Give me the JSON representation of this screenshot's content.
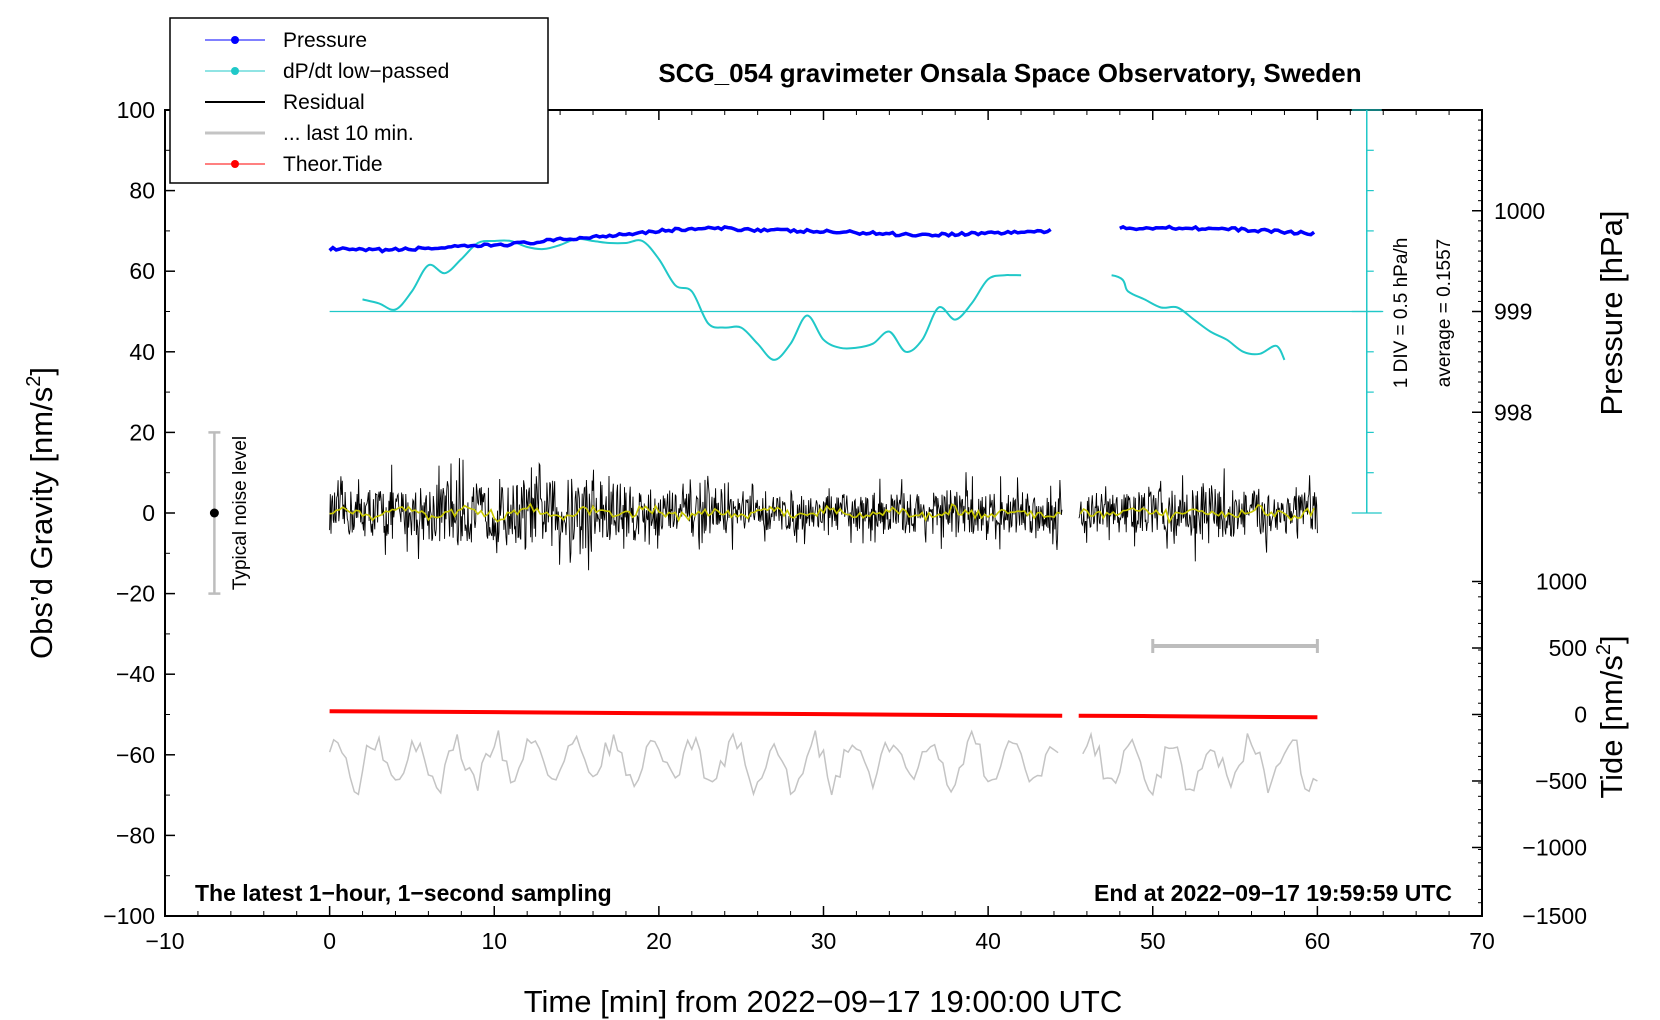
{
  "chart_data": {
    "type": "line",
    "title": "SCG_054 gravimeter Onsala Space Observatory, Sweden",
    "xlabel": "Time [min] from 2022−09−17 19:00:00 UTC",
    "ylabel_left": "Obs’d Gravity [nm/s",
    "ylabel_sup": "2",
    "ylabel_close": "]",
    "ylabel_pressure": "Pressure [hPa]",
    "ylabel_tide": "Tide [nm/s",
    "xlim": [
      -10,
      70
    ],
    "ylim": [
      -100,
      100
    ],
    "x_ticks": [
      "−10",
      "0",
      "10",
      "20",
      "30",
      "40",
      "50",
      "60",
      "70"
    ],
    "x_tick_values": [
      -10,
      0,
      10,
      20,
      30,
      40,
      50,
      60,
      70
    ],
    "y_ticks": [
      "−100",
      "−80",
      "−60",
      "−40",
      "−20",
      "0",
      "20",
      "40",
      "60",
      "80",
      "100"
    ],
    "y_tick_values": [
      -100,
      -80,
      -60,
      -40,
      -20,
      0,
      20,
      40,
      60,
      80,
      100
    ],
    "pressure_axis": {
      "ticks": [
        "1000",
        "999",
        "998"
      ],
      "tick_values": [
        1000,
        999,
        998
      ],
      "gravity_equiv": [
        75,
        50,
        25
      ]
    },
    "tide_axis": {
      "ticks": [
        "1000",
        "500",
        "0",
        "−500",
        "−1000",
        "−1500"
      ],
      "tick_values": [
        1000,
        500,
        0,
        -500,
        -1000,
        -1500
      ],
      "gravity_equiv": [
        -17,
        -33.5,
        -50,
        -66.5,
        -83,
        -100
      ]
    },
    "dpdt_scale": {
      "label": "1 DIV = 0.5 hPa/h",
      "average_label": "average = 0.1557",
      "x": 63,
      "y_bottom": 0,
      "y_top": 100,
      "divisions": 10,
      "zero_line_y": 50
    },
    "noise_level": {
      "label": "Typical noise level",
      "x": -7,
      "center": 0,
      "half_range": 20
    },
    "ten_min_bar": {
      "x_start": 50,
      "x_end": 60,
      "y": -33
    },
    "series": [
      {
        "name": "Pressure",
        "color": "#0000ff",
        "x": [
          0,
          2,
          4,
          6,
          8,
          10,
          12,
          14,
          16,
          18,
          20,
          22,
          24,
          26,
          28,
          30,
          32,
          34,
          36,
          38,
          40,
          42,
          44,
          46,
          48,
          50,
          52,
          54,
          56,
          58,
          60
        ],
        "y": [
          65.5,
          65.2,
          65.3,
          65.7,
          66,
          66.5,
          67,
          67.8,
          68.5,
          69.3,
          70,
          70.5,
          70.6,
          70.3,
          70,
          69.8,
          69.6,
          69.3,
          69,
          69.2,
          69.5,
          69.7,
          70,
          null,
          70.6,
          70.8,
          70.8,
          70.5,
          70.2,
          69.8,
          69.3
        ]
      },
      {
        "name": "dP/dt low−passed",
        "color": "#20c8c8",
        "x": [
          2,
          3,
          4,
          5,
          6,
          7,
          8,
          9,
          10,
          11,
          12,
          13,
          14,
          15,
          16,
          17,
          18,
          19,
          20,
          21,
          22,
          23,
          24,
          25,
          26,
          27,
          28,
          29,
          30,
          31,
          32,
          33,
          34,
          35,
          36,
          37,
          38,
          39,
          40,
          41,
          42,
          47.5,
          48.5,
          49.5,
          50.5,
          51.5,
          52.5,
          53.5,
          54.5,
          55.5,
          56.5,
          57.5,
          58
        ],
        "y": [
          53,
          52,
          50.5,
          55,
          61.5,
          59.5,
          63,
          67,
          67.5,
          67.5,
          66,
          65.5,
          66.5,
          68,
          67.5,
          67,
          67,
          67.5,
          63,
          56.5,
          55,
          47,
          46,
          46,
          42,
          38,
          42,
          49,
          43,
          41,
          41,
          42,
          45,
          40,
          43,
          51,
          48,
          52,
          58,
          59,
          59,
          59,
          55,
          53,
          51,
          51,
          48,
          45,
          43,
          40,
          39.5,
          41.5,
          38
        ]
      },
      {
        "name": "Residual",
        "color": "#000000",
        "x_range": [
          0,
          60
        ],
        "gap": [
          44.5,
          45.5
        ],
        "y_range": [
          -17,
          18
        ],
        "amplitude_envelope": [
          7,
          8,
          8,
          9,
          8,
          9,
          10,
          12,
          10,
          9,
          9,
          10,
          10,
          11,
          12,
          13,
          13,
          12,
          9,
          8,
          8,
          7,
          7,
          7,
          7,
          6,
          6,
          6,
          6,
          6,
          6,
          6,
          6,
          7,
          7,
          7,
          7,
          8,
          8,
          7,
          7,
          7,
          7,
          7,
          7,
          7,
          7,
          7,
          7,
          7,
          7,
          8,
          9,
          10,
          9,
          8,
          8,
          7,
          7,
          7,
          6
        ]
      },
      {
        "name": "... last 10 min.",
        "color": "#c4c4c4",
        "offset": -62,
        "x_range": [
          0,
          60
        ],
        "y_range": [
          -77,
          -52
        ]
      },
      {
        "name": "Theor.Tide",
        "color": "#ff0000",
        "x": [
          0,
          10,
          20,
          30,
          40,
          44.5,
          null,
          45.5,
          50,
          60
        ],
        "y": [
          -49.2,
          -49.4,
          -49.7,
          -49.9,
          -50.2,
          -50.3,
          null,
          -50.3,
          -50.4,
          -50.7
        ]
      }
    ],
    "legend": {
      "placement": "top-left",
      "entries": [
        "Pressure",
        "dP/dt low−passed",
        "Residual",
        "... last 10 min.",
        "Theor.Tide"
      ]
    },
    "annotations": {
      "bottom_left": "The latest 1−hour, 1−second sampling",
      "bottom_right": "End at 2022−09−17 19:59:59 UTC"
    }
  }
}
